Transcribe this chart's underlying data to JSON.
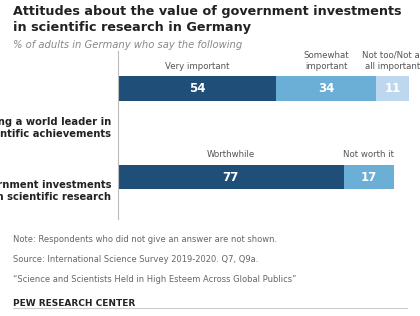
{
  "title_line1": "Attitudes about the value of government investments",
  "title_line2": "in scientific research in Germany",
  "subtitle": "% of adults in Germany who say the following",
  "bar1_label": "Being a world leader in\nscientific achievements",
  "bar2_label": "Government investments\nin scientific research",
  "bar1_headers": [
    "Very important",
    "Somewhat\nimportant",
    "Not too/Not at\nall important"
  ],
  "bar2_headers": [
    "Worthwhile",
    "Not worth it"
  ],
  "bar1_values": [
    54,
    34,
    11
  ],
  "bar2_values": [
    77,
    17
  ],
  "bar1_colors": [
    "#1f4e79",
    "#6baed6",
    "#bdd7ee"
  ],
  "bar2_colors": [
    "#1f4e79",
    "#6baed6"
  ],
  "note_lines": [
    "Note: Respondents who did not give an answer are not shown.",
    "Source: International Science Survey 2019-2020. Q7, Q9a.",
    "“Science and Scientists Held in High Esteem Across Global Publics”"
  ],
  "footer": "PEW RESEARCH CENTER",
  "bg_color": "#ffffff",
  "white": "#ffffff",
  "dark_text": "#222222",
  "gray_text": "#888888",
  "note_text": "#666666",
  "divider_color": "#bbbbbb"
}
